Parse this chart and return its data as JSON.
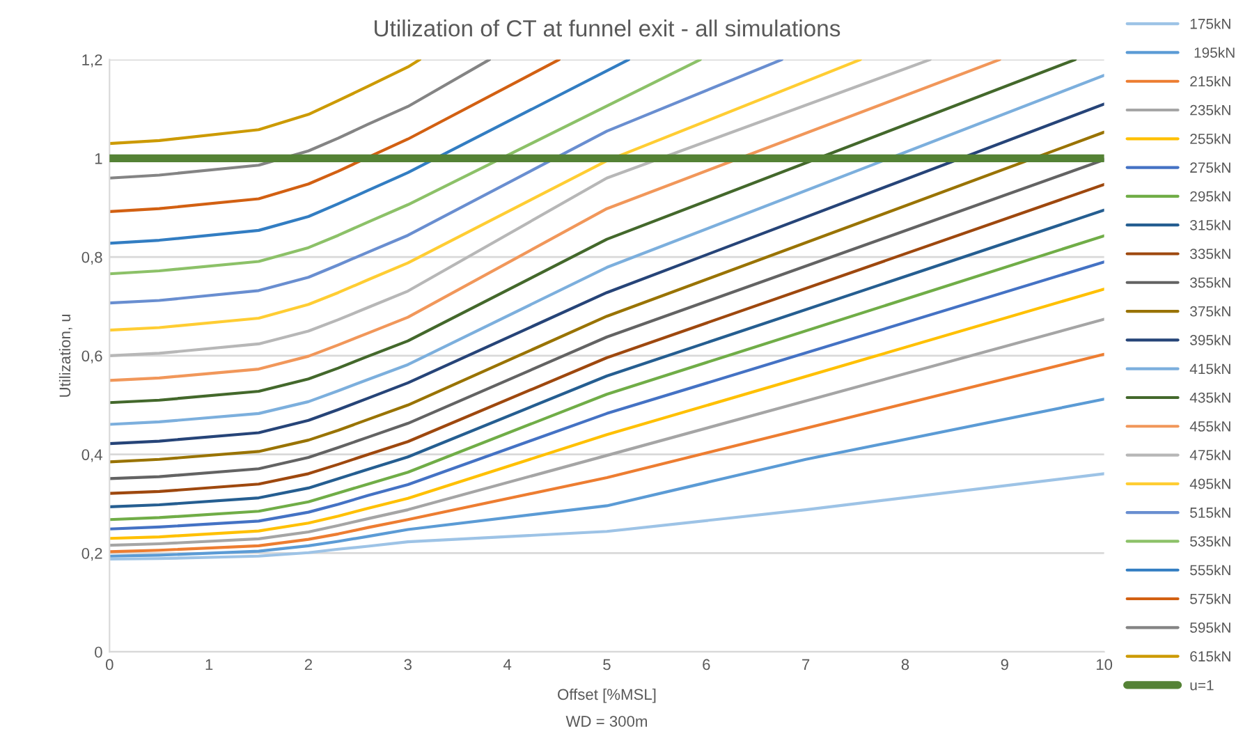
{
  "chart_data": {
    "type": "line",
    "title": "Utilization of CT at funnel exit - all simulations",
    "xlabel": "Offset [%MSL]",
    "ylabel": "Utilization, u",
    "annotations": [
      "WD = 300m"
    ],
    "xlim": [
      0,
      10
    ],
    "xticks": [
      0,
      1,
      2,
      3,
      4,
      5,
      6,
      7,
      8,
      9,
      10
    ],
    "ylim": [
      0,
      1.2
    ],
    "yticks": [
      {
        "value": 0,
        "label": "0"
      },
      {
        "value": 0.2,
        "label": "0,2"
      },
      {
        "value": 0.4,
        "label": "0,4"
      },
      {
        "value": 0.6,
        "label": "0,6"
      },
      {
        "value": 0.8,
        "label": "0,8"
      },
      {
        "value": 1,
        "label": "1"
      },
      {
        "value": 1.2,
        "label": "1,2"
      }
    ],
    "grid": "y",
    "legend": "right",
    "marker": "none",
    "line_style": "solid",
    "ref_lines": [
      {
        "axis": "y",
        "value": 1,
        "label": "u=1",
        "color": "#548235"
      }
    ],
    "series": [
      {
        "name": "175kN",
        "color": "#9dc3e6",
        "x": [
          0,
          0.5,
          1.5,
          2,
          2.3,
          2.6,
          3,
          5,
          7,
          10
        ],
        "values": [
          0.188,
          0.189,
          0.194,
          0.201,
          0.208,
          0.214,
          0.223,
          0.244,
          0.288,
          0.361
        ]
      },
      {
        "name": " 195kN",
        "color": "#5b9bd5",
        "x": [
          0,
          0.5,
          1.5,
          2,
          2.3,
          2.6,
          3,
          5,
          7,
          10
        ],
        "values": [
          0.194,
          0.196,
          0.204,
          0.215,
          0.224,
          0.234,
          0.248,
          0.296,
          0.39,
          0.512
        ]
      },
      {
        "name": "215kN",
        "color": "#ed7d31",
        "x": [
          0,
          0.5,
          1.5,
          2,
          2.3,
          2.6,
          3,
          5,
          10
        ],
        "values": [
          0.203,
          0.206,
          0.215,
          0.228,
          0.239,
          0.252,
          0.268,
          0.353,
          0.603
        ]
      },
      {
        "name": "235kN",
        "color": "#a5a5a5",
        "x": [
          0,
          0.5,
          1.5,
          2,
          2.3,
          2.6,
          3,
          5,
          10
        ],
        "values": [
          0.216,
          0.219,
          0.229,
          0.243,
          0.256,
          0.27,
          0.288,
          0.398,
          0.674
        ]
      },
      {
        "name": "255kN",
        "color": "#ffc000",
        "x": [
          0,
          0.5,
          1.5,
          2,
          2.3,
          2.6,
          3,
          5,
          10
        ],
        "values": [
          0.23,
          0.233,
          0.245,
          0.261,
          0.275,
          0.291,
          0.311,
          0.44,
          0.735
        ]
      },
      {
        "name": "275kN",
        "color": "#4472c4",
        "x": [
          0,
          0.5,
          1.5,
          2,
          2.3,
          2.6,
          3,
          5,
          10
        ],
        "values": [
          0.249,
          0.253,
          0.265,
          0.283,
          0.299,
          0.317,
          0.339,
          0.483,
          0.79
        ]
      },
      {
        "name": "295kN",
        "color": "#70ad47",
        "x": [
          0,
          0.5,
          1.5,
          2,
          2.3,
          2.6,
          3,
          5,
          10
        ],
        "values": [
          0.268,
          0.272,
          0.285,
          0.304,
          0.322,
          0.34,
          0.364,
          0.522,
          0.843
        ]
      },
      {
        "name": "315kN",
        "color": "#255e91",
        "x": [
          0,
          0.5,
          1.5,
          2,
          2.3,
          2.6,
          3,
          5,
          10
        ],
        "values": [
          0.294,
          0.298,
          0.312,
          0.332,
          0.351,
          0.37,
          0.395,
          0.559,
          0.895
        ]
      },
      {
        "name": "335kN",
        "color": "#9e480e",
        "x": [
          0,
          0.5,
          1.5,
          2,
          2.3,
          2.6,
          3,
          5,
          10
        ],
        "values": [
          0.321,
          0.325,
          0.34,
          0.361,
          0.38,
          0.4,
          0.426,
          0.596,
          0.947
        ]
      },
      {
        "name": "355kN",
        "color": "#636363",
        "x": [
          0,
          0.5,
          1.5,
          2,
          2.3,
          2.6,
          3,
          5,
          10
        ],
        "values": [
          0.351,
          0.355,
          0.371,
          0.394,
          0.414,
          0.435,
          0.463,
          0.638,
          0.997
        ]
      },
      {
        "name": "375kN",
        "color": "#997300",
        "x": [
          0,
          0.5,
          1.5,
          2,
          2.3,
          2.6,
          3,
          5,
          10
        ],
        "values": [
          0.385,
          0.39,
          0.406,
          0.429,
          0.449,
          0.471,
          0.5,
          0.68,
          1.053
        ]
      },
      {
        "name": "395kN",
        "color": "#264478",
        "x": [
          0,
          0.5,
          1.5,
          2,
          2.3,
          2.6,
          3,
          5,
          10
        ],
        "values": [
          0.422,
          0.427,
          0.444,
          0.469,
          0.491,
          0.514,
          0.545,
          0.728,
          1.11
        ]
      },
      {
        "name": "415kN",
        "color": "#7cafdd",
        "x": [
          0,
          0.5,
          1.5,
          2,
          2.3,
          2.6,
          3,
          5,
          10
        ],
        "values": [
          0.461,
          0.466,
          0.483,
          0.507,
          0.529,
          0.552,
          0.582,
          0.779,
          1.168
        ]
      },
      {
        "name": "435kN",
        "color": "#43682b",
        "x": [
          0,
          0.5,
          1.5,
          2,
          2.3,
          2.6,
          3,
          5,
          9.71
        ],
        "values": [
          0.505,
          0.51,
          0.528,
          0.553,
          0.575,
          0.599,
          0.63,
          0.836,
          1.2
        ]
      },
      {
        "name": "455kN",
        "color": "#f1975a",
        "x": [
          0,
          0.5,
          1.5,
          2,
          2.3,
          2.6,
          3,
          5,
          8.95
        ],
        "values": [
          0.55,
          0.555,
          0.573,
          0.599,
          0.622,
          0.646,
          0.678,
          0.898,
          1.2
        ]
      },
      {
        "name": "475kN",
        "color": "#b7b7b7",
        "x": [
          0,
          0.5,
          1.5,
          2,
          2.3,
          2.6,
          3,
          5,
          8.25
        ],
        "values": [
          0.6,
          0.605,
          0.624,
          0.65,
          0.673,
          0.698,
          0.731,
          0.96,
          1.2
        ]
      },
      {
        "name": "495kN",
        "color": "#ffcd33",
        "x": [
          0,
          0.5,
          1.5,
          2,
          2.3,
          2.6,
          3,
          5,
          7.55
        ],
        "values": [
          0.652,
          0.657,
          0.676,
          0.704,
          0.728,
          0.754,
          0.788,
          0.995,
          1.2
        ]
      },
      {
        "name": "515kN",
        "color": "#698ed0",
        "x": [
          0,
          0.5,
          1.5,
          2,
          2.3,
          2.6,
          3,
          5,
          6.76
        ],
        "values": [
          0.707,
          0.712,
          0.732,
          0.759,
          0.784,
          0.81,
          0.844,
          1.055,
          1.2
        ]
      },
      {
        "name": "535kN",
        "color": "#8cc168",
        "x": [
          0,
          0.5,
          1.5,
          2,
          2.3,
          2.6,
          3,
          5.94
        ],
        "values": [
          0.766,
          0.772,
          0.791,
          0.819,
          0.844,
          0.871,
          0.906,
          1.2
        ]
      },
      {
        "name": "555kN",
        "color": "#327dc2",
        "x": [
          0,
          0.5,
          1.5,
          2,
          2.3,
          2.6,
          3,
          5.22
        ],
        "values": [
          0.828,
          0.834,
          0.854,
          0.882,
          0.908,
          0.935,
          0.971,
          1.2
        ]
      },
      {
        "name": "575kN",
        "color": "#d26012",
        "x": [
          0,
          0.5,
          1.5,
          2,
          2.3,
          2.6,
          3,
          4.52
        ],
        "values": [
          0.892,
          0.898,
          0.918,
          0.948,
          0.974,
          1.002,
          1.039,
          1.2
        ]
      },
      {
        "name": "595kN",
        "color": "#848484",
        "x": [
          0,
          0.5,
          1.5,
          2,
          2.3,
          2.6,
          3,
          3.82
        ],
        "values": [
          0.96,
          0.966,
          0.986,
          1.015,
          1.041,
          1.069,
          1.105,
          1.2
        ]
      },
      {
        "name": "615kN",
        "color": "#cc9a00",
        "x": [
          0,
          0.5,
          1.5,
          2,
          2.3,
          2.6,
          3,
          3.12
        ],
        "values": [
          1.03,
          1.036,
          1.058,
          1.089,
          1.117,
          1.146,
          1.185,
          1.2
        ]
      }
    ]
  }
}
